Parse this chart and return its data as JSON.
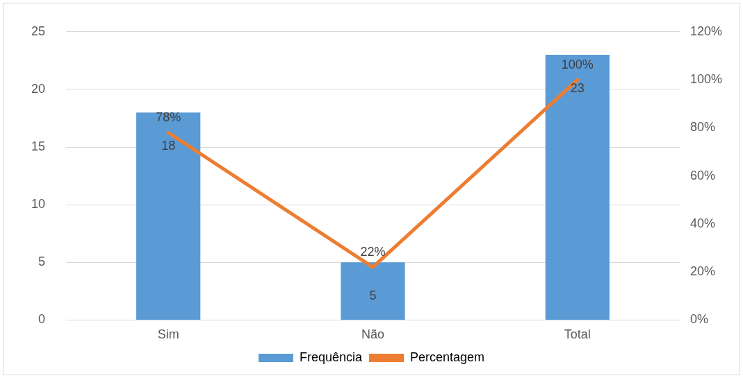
{
  "chart_data": {
    "type": "bar",
    "categories": [
      "Sim",
      "Não",
      "Total"
    ],
    "series": [
      {
        "name": "Frequência",
        "color": "#5b9bd5",
        "values": [
          18,
          5,
          23
        ],
        "value_labels": [
          "18",
          "5",
          "23"
        ]
      },
      {
        "name": "Percentagem",
        "type": "line",
        "axis": "y2",
        "color": "#ed7d31",
        "values": [
          78,
          22,
          100
        ],
        "value_labels": [
          "78%",
          "22%",
          "100%"
        ]
      }
    ],
    "ylim": [
      0,
      25
    ],
    "yticks": [
      0,
      5,
      10,
      15,
      20,
      25
    ],
    "y2lim": [
      0,
      120
    ],
    "y2ticks": [
      {
        "value": 0,
        "label": "0%"
      },
      {
        "value": 20,
        "label": "20%"
      },
      {
        "value": 40,
        "label": "40%"
      },
      {
        "value": 60,
        "label": "60%"
      },
      {
        "value": 80,
        "label": "80%"
      },
      {
        "value": 100,
        "label": "100%"
      },
      {
        "value": 120,
        "label": "120%"
      }
    ],
    "grid": "y",
    "legend": "bottom",
    "marker": "none"
  }
}
